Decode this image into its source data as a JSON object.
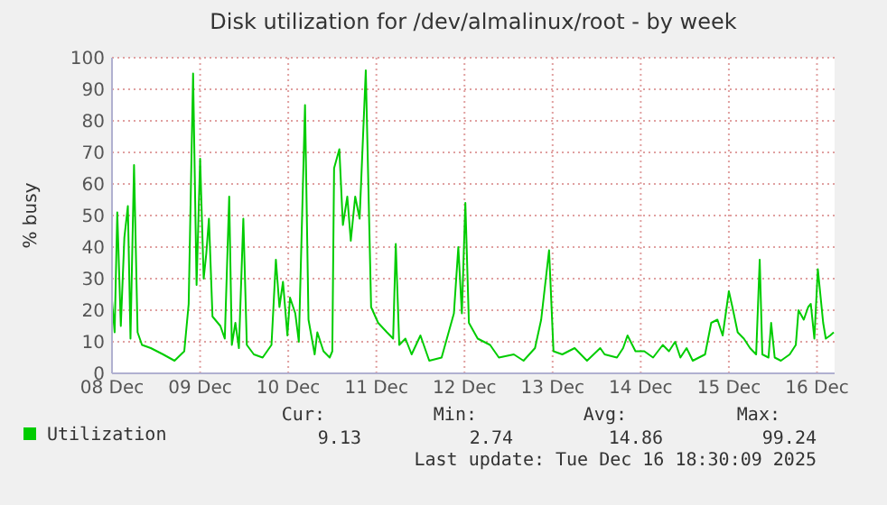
{
  "chart_data": {
    "type": "line",
    "title": "Disk utilization for /dev/almalinux/root - by week",
    "ylabel": "% busy",
    "xlim": [
      "2025-12-08T00:00",
      "2025-12-16T04:48"
    ],
    "ylim": [
      0,
      100
    ],
    "xticks": [
      {
        "value": "2025-12-08",
        "label": "08 Dec"
      },
      {
        "value": "2025-12-09",
        "label": "09 Dec"
      },
      {
        "value": "2025-12-10",
        "label": "10 Dec"
      },
      {
        "value": "2025-12-11",
        "label": "11 Dec"
      },
      {
        "value": "2025-12-12",
        "label": "12 Dec"
      },
      {
        "value": "2025-12-13",
        "label": "13 Dec"
      },
      {
        "value": "2025-12-14",
        "label": "14 Dec"
      },
      {
        "value": "2025-12-15",
        "label": "15 Dec"
      },
      {
        "value": "2025-12-16",
        "label": "16 Dec"
      }
    ],
    "yticks": [
      0,
      10,
      20,
      30,
      40,
      50,
      60,
      70,
      80,
      90,
      100
    ],
    "grid": true,
    "legend": "bottom",
    "series": [
      {
        "name": "Utilization",
        "color": "#00cc00",
        "x": [
          "2025-12-08T00:00",
          "2025-12-08T00:43",
          "2025-12-08T01:26",
          "2025-12-08T02:24",
          "2025-12-08T03:22",
          "2025-12-08T04:19",
          "2025-12-08T05:02",
          "2025-12-08T06:00",
          "2025-12-08T06:58",
          "2025-12-08T08:10",
          "2025-12-08T10:34",
          "2025-12-08T13:55",
          "2025-12-08T17:02",
          "2025-12-08T19:41",
          "2025-12-08T20:53",
          "2025-12-08T22:05",
          "2025-12-08T23:02",
          "2025-12-09T00:00",
          "2025-12-09T00:58",
          "2025-12-09T01:41",
          "2025-12-09T02:24",
          "2025-12-09T03:22",
          "2025-12-09T05:31",
          "2025-12-09T06:43",
          "2025-12-09T07:55",
          "2025-12-09T08:38",
          "2025-12-09T09:36",
          "2025-12-09T10:34",
          "2025-12-09T11:46",
          "2025-12-09T12:43",
          "2025-12-09T14:38",
          "2025-12-09T17:02",
          "2025-12-09T19:26",
          "2025-12-09T20:38",
          "2025-12-09T21:36",
          "2025-12-09T22:34",
          "2025-12-09T23:46",
          "2025-12-10T00:29",
          "2025-12-10T01:55",
          "2025-12-10T02:53",
          "2025-12-10T04:34",
          "2025-12-10T05:31",
          "2025-12-10T07:12",
          "2025-12-10T07:55",
          "2025-12-10T09:36",
          "2025-12-10T11:17",
          "2025-12-10T12:00",
          "2025-12-10T12:29",
          "2025-12-10T13:55",
          "2025-12-10T14:53",
          "2025-12-10T16:05",
          "2025-12-10T17:02",
          "2025-12-10T18:14",
          "2025-12-10T19:26",
          "2025-12-10T21:07",
          "2025-12-10T22:34",
          "2025-12-11T00:29",
          "2025-12-11T02:53",
          "2025-12-11T04:34",
          "2025-12-11T05:17",
          "2025-12-11T06:14",
          "2025-12-11T07:55",
          "2025-12-11T09:36",
          "2025-12-11T12:00",
          "2025-12-11T14:24",
          "2025-12-11T17:46",
          "2025-12-11T21:07",
          "2025-12-11T22:19",
          "2025-12-11T23:17",
          "2025-12-12T00:14",
          "2025-12-12T01:12",
          "2025-12-12T03:36",
          "2025-12-12T06:58",
          "2025-12-12T09:22",
          "2025-12-12T13:26",
          "2025-12-12T16:05",
          "2025-12-12T19:12",
          "2025-12-12T20:53",
          "2025-12-12T23:02",
          "2025-12-13T00:14",
          "2025-12-13T02:38",
          "2025-12-13T06:00",
          "2025-12-13T09:22",
          "2025-12-13T12:58",
          "2025-12-13T14:10",
          "2025-12-13T17:31",
          "2025-12-13T19:12",
          "2025-12-13T20:24",
          "2025-12-13T22:34",
          "2025-12-14T00:58",
          "2025-12-14T03:22",
          "2025-12-14T06:00",
          "2025-12-14T07:41",
          "2025-12-14T09:22",
          "2025-12-14T10:48",
          "2025-12-14T12:29",
          "2025-12-14T14:10",
          "2025-12-14T17:31",
          "2025-12-14T19:12",
          "2025-12-14T20:53",
          "2025-12-14T22:19",
          "2025-12-15T00:00",
          "2025-12-15T00:58",
          "2025-12-15T02:24",
          "2025-12-15T04:05",
          "2025-12-15T05:46",
          "2025-12-15T07:26",
          "2025-12-15T08:24",
          "2025-12-15T09:07",
          "2025-12-15T10:48",
          "2025-12-15T11:31",
          "2025-12-15T12:29",
          "2025-12-15T14:10",
          "2025-12-15T16:34",
          "2025-12-15T18:14",
          "2025-12-15T18:58",
          "2025-12-15T20:24",
          "2025-12-15T21:36",
          "2025-12-15T22:19",
          "2025-12-15T23:17",
          "2025-12-16T00:14",
          "2025-12-16T01:41",
          "2025-12-16T02:24",
          "2025-12-16T03:36",
          "2025-12-16T04:34"
        ],
        "values": [
          23,
          13,
          51,
          15,
          43,
          53,
          11,
          66,
          13,
          9,
          8,
          6,
          4,
          7,
          22,
          95,
          28,
          68,
          30,
          38,
          49,
          18,
          15,
          11,
          56,
          9,
          16,
          8,
          49,
          9,
          6,
          5,
          9,
          36,
          21,
          29,
          12,
          24,
          19,
          10,
          85,
          17,
          6,
          13,
          7,
          5,
          7,
          65,
          71,
          47,
          56,
          42,
          56,
          49,
          96,
          21,
          16,
          13,
          11,
          41,
          9,
          11,
          6,
          12,
          4,
          5,
          19,
          40,
          19,
          54,
          16,
          11,
          9,
          5,
          6,
          4,
          8,
          17,
          39,
          7,
          6,
          8,
          4,
          8,
          6,
          5,
          8,
          12,
          7,
          7,
          5,
          9,
          7,
          10,
          5,
          8,
          4,
          6,
          16,
          17,
          12,
          26,
          21,
          13,
          11,
          8,
          6,
          36,
          6,
          5,
          16,
          5,
          4,
          6,
          9,
          20,
          17,
          21,
          22,
          11,
          33,
          16,
          11,
          12,
          13
        ]
      }
    ],
    "annotations": [
      "Cur:",
      "Min:",
      "Avg:",
      "Max:",
      "9.13",
      "2.74",
      "14.86",
      "99.24",
      "Last update: Tue Dec 16 18:30:09 2025"
    ]
  }
}
